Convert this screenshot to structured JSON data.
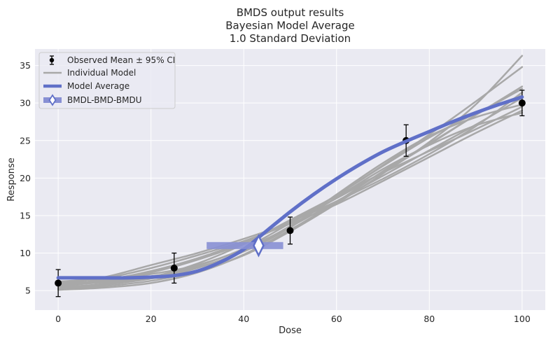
{
  "chart_data": {
    "type": "line",
    "title_lines": [
      "BMDS output results",
      "Bayesian Model Average",
      "1.0 Standard Deviation"
    ],
    "xlabel": "Dose",
    "ylabel": "Response",
    "xlim": [
      -5,
      105
    ],
    "ylim": [
      2.4,
      37.2
    ],
    "xticks": [
      0,
      20,
      40,
      60,
      80,
      100
    ],
    "yticks": [
      5,
      10,
      15,
      20,
      25,
      30,
      35
    ],
    "grid": true,
    "legend_placement": "top-left",
    "legend": [
      {
        "label": "Observed Mean ± 95% CI",
        "kind": "errorbar"
      },
      {
        "label": "Individual Model",
        "kind": "line"
      },
      {
        "label": "Model Average",
        "kind": "thick-line"
      },
      {
        "label": "BMDL-BMD-BMDU",
        "kind": "bmd"
      }
    ],
    "observed": [
      {
        "dose": 0,
        "mean": 6.0,
        "lower": 4.2,
        "upper": 7.8
      },
      {
        "dose": 25,
        "mean": 8.0,
        "lower": 6.0,
        "upper": 10.0
      },
      {
        "dose": 50,
        "mean": 13.0,
        "lower": 11.2,
        "upper": 14.8
      },
      {
        "dose": 75,
        "mean": 25.0,
        "lower": 22.9,
        "upper": 27.1
      },
      {
        "dose": 100,
        "mean": 30.0,
        "lower": 28.3,
        "upper": 31.7
      }
    ],
    "model_average": {
      "x": [
        0,
        5,
        10,
        15,
        20,
        25,
        30,
        35,
        40,
        45,
        50,
        55,
        60,
        65,
        70,
        75,
        80,
        85,
        90,
        95,
        100
      ],
      "y": [
        6.7,
        6.7,
        6.7,
        6.7,
        6.8,
        7.0,
        7.6,
        8.8,
        10.5,
        13.0,
        15.5,
        17.8,
        19.9,
        21.8,
        23.5,
        24.9,
        26.2,
        27.5,
        28.7,
        29.8,
        30.8
      ]
    },
    "individual_models": {
      "x": [
        0,
        10,
        20,
        30,
        40,
        50,
        60,
        70,
        80,
        90,
        100
      ],
      "series": [
        {
          "y": [
            5.2,
            5.6,
            6.3,
            7.6,
            9.7,
            12.9,
            16.6,
            20.6,
            24.8,
            29.8,
            36.3
          ]
        },
        {
          "y": [
            5.4,
            5.9,
            6.7,
            8.3,
            10.6,
            14.0,
            17.7,
            21.7,
            25.8,
            30.2,
            34.8
          ]
        },
        {
          "y": [
            5.6,
            6.2,
            7.4,
            9.1,
            11.3,
            14.2,
            17.7,
            21.6,
            25.4,
            28.6,
            31.0
          ]
        },
        {
          "y": [
            5.9,
            6.8,
            8.4,
            10.0,
            11.9,
            14.1,
            17.3,
            20.8,
            24.5,
            28.4,
            31.9
          ]
        },
        {
          "y": [
            5.5,
            6.6,
            8.0,
            9.7,
            11.6,
            13.9,
            16.5,
            19.6,
            22.8,
            26.0,
            29.0
          ]
        },
        {
          "y": [
            6.0,
            6.3,
            6.9,
            8.1,
            10.2,
            13.4,
            17.8,
            22.0,
            25.6,
            28.1,
            29.8
          ]
        },
        {
          "y": [
            5.3,
            5.8,
            6.6,
            8.0,
            10.3,
            13.6,
            17.4,
            21.2,
            24.4,
            27.0,
            28.7
          ]
        },
        {
          "y": [
            5.8,
            6.1,
            6.8,
            8.6,
            11.2,
            14.4,
            17.6,
            20.7,
            23.6,
            26.5,
            29.5
          ]
        },
        {
          "y": [
            6.2,
            6.6,
            7.2,
            8.4,
            10.5,
            13.5,
            16.9,
            20.3,
            23.7,
            27.1,
            30.7
          ]
        },
        {
          "y": [
            5.1,
            5.4,
            6.0,
            7.4,
            9.8,
            13.1,
            16.8,
            20.9,
            24.6,
            28.4,
            32.2
          ]
        },
        {
          "y": [
            5.7,
            6.4,
            7.6,
            9.3,
            11.5,
            14.1,
            16.9,
            19.9,
            23.2,
            26.9,
            31.4
          ]
        }
      ]
    },
    "bmd": {
      "bmdl": 32,
      "bmd": 43.2,
      "bmdu": 48.5,
      "response": 11.0
    },
    "colors": {
      "background": "#eaeaf2",
      "grid": "#ffffff",
      "model_average": "#6070c8",
      "individual": "#a8a8a8",
      "bmd_band": "#8890d4",
      "observed": "#000000"
    }
  }
}
